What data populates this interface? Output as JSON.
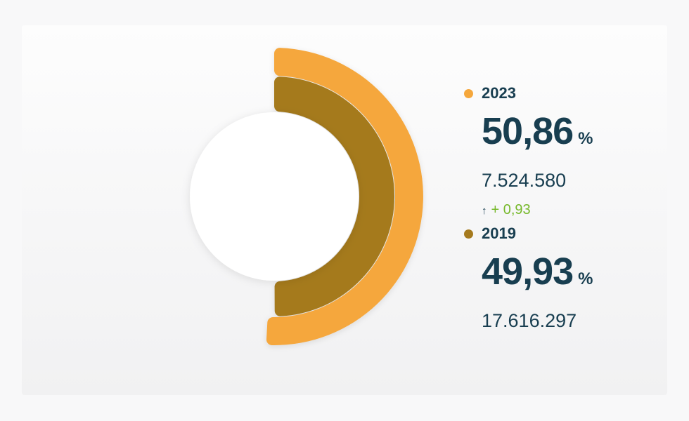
{
  "colors": {
    "page_bg": "#f8f8f9",
    "text_primary": "#183e50",
    "positive_green": "#76b82a",
    "accent_2023": "#f5a73c",
    "accent_2019": "#a57a1e"
  },
  "chart_data": {
    "type": "pie",
    "variant": "half-donut",
    "start_angle_deg": 0,
    "direction": "clockwise",
    "legend_position": "right",
    "rings": [
      {
        "name": "2023",
        "ring": "outer",
        "percent": 50.86,
        "percent_label": "50,86",
        "value_label": "7.524.580",
        "color": "#f5a73c"
      },
      {
        "name": "2019",
        "ring": "inner",
        "percent": 49.93,
        "percent_label": "49,93",
        "value_label": "17.616.297",
        "color": "#a57a1e"
      }
    ]
  },
  "legend": {
    "items": [
      {
        "year": "2023",
        "percent_label": "50,86",
        "percent_sign": "%",
        "value": "7.524.580",
        "change_arrow": "↑",
        "change": "+ 0,93"
      },
      {
        "year": "2019",
        "percent_label": "49,93",
        "percent_sign": "%",
        "value": "17.616.297"
      }
    ]
  }
}
